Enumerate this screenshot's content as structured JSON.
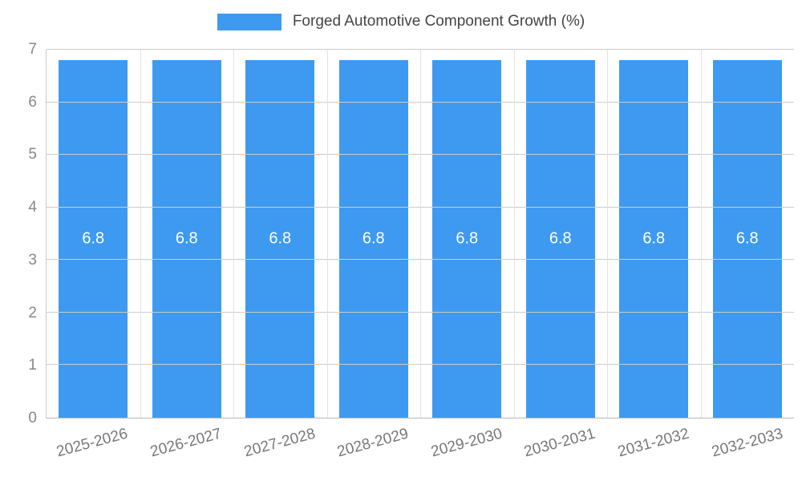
{
  "chart_data": {
    "type": "bar",
    "title": "Forged Automotive Component Growth (%)",
    "categories": [
      "2025-2026",
      "2026-2027",
      "2027-2028",
      "2028-2029",
      "2029-2030",
      "2030-2031",
      "2031-2032",
      "2032-2033"
    ],
    "values": [
      6.8,
      6.8,
      6.8,
      6.8,
      6.8,
      6.8,
      6.8,
      6.8
    ],
    "xlabel": "",
    "ylabel": "",
    "ylim": [
      0,
      7
    ],
    "yticks": [
      0,
      1,
      2,
      3,
      4,
      5,
      6,
      7
    ],
    "grid": true,
    "legend_position": "top",
    "colors": {
      "bar": "#3d9af0",
      "value_label": "#ffffff",
      "grid_line": "#cccccc",
      "axis_text": "#888888"
    }
  }
}
